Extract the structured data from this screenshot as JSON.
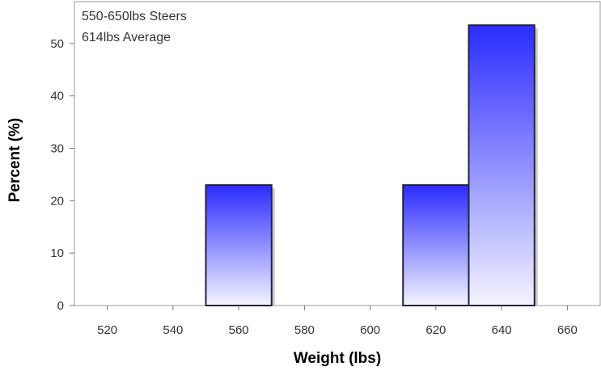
{
  "chart_data": {
    "type": "bar",
    "title": "",
    "inset_lines": [
      "550-650lbs Steers",
      "614lbs Average"
    ],
    "xlabel": "Weight (lbs)",
    "ylabel": "Percent (%)",
    "xlim": [
      510,
      670
    ],
    "ylim": [
      0,
      58
    ],
    "xticks": [
      520,
      540,
      560,
      580,
      600,
      620,
      640,
      660
    ],
    "yticks": [
      0,
      10,
      20,
      30,
      40,
      50
    ],
    "bin_width": 20,
    "bins": [
      {
        "center": 560,
        "value": 23
      },
      {
        "center": 620,
        "value": 23
      },
      {
        "center": 640,
        "value": 53.5
      }
    ],
    "grid": false,
    "legend": "none",
    "colors": {
      "bar_top": "#2b2bff",
      "bar_bottom": "#f4f4ff",
      "bar_outline": "#222244",
      "shadow": "#c8c8c8",
      "frame": "#9a9a9a"
    }
  }
}
